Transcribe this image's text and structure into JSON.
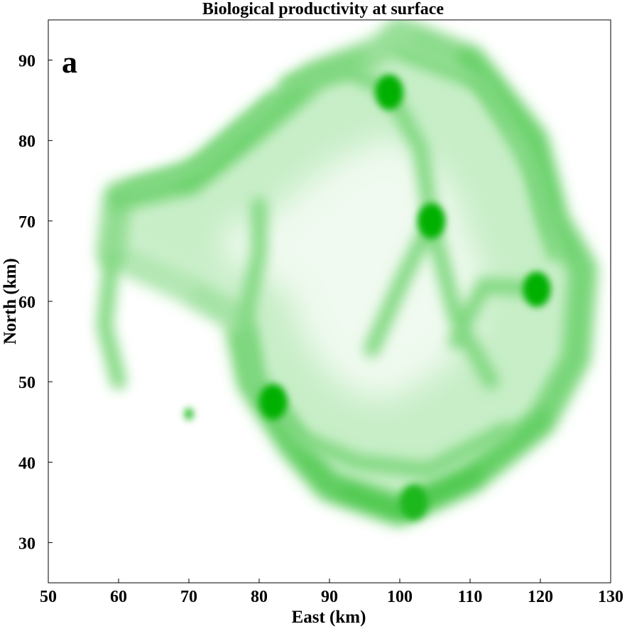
{
  "chart_data": {
    "type": "heatmap",
    "title": "Biological productivity at surface",
    "panel_label": "a",
    "xlabel": "East (km)",
    "ylabel": "North (km)",
    "xlim": [
      50,
      130
    ],
    "ylim": [
      25,
      95
    ],
    "x_ticks": [
      50,
      60,
      70,
      80,
      90,
      100,
      110,
      120,
      130
    ],
    "y_ticks": [
      30,
      40,
      50,
      60,
      70,
      80,
      90
    ],
    "grid": false,
    "colormap": {
      "low": "#ffffff",
      "high": "#00b000"
    },
    "colorbar": false,
    "features": {
      "outer_ring": [
        {
          "x": 100,
          "y": 93.5,
          "intensity": 0.35
        },
        {
          "x": 110,
          "y": 90,
          "intensity": 0.55
        },
        {
          "x": 119,
          "y": 80,
          "intensity": 0.6
        },
        {
          "x": 122,
          "y": 70,
          "intensity": 0.55
        },
        {
          "x": 126,
          "y": 64,
          "intensity": 0.55
        },
        {
          "x": 125,
          "y": 53,
          "intensity": 0.5
        },
        {
          "x": 120,
          "y": 45,
          "intensity": 0.55
        },
        {
          "x": 110,
          "y": 38,
          "intensity": 0.65
        },
        {
          "x": 100,
          "y": 34,
          "intensity": 0.7
        },
        {
          "x": 90,
          "y": 37,
          "intensity": 0.65
        },
        {
          "x": 85,
          "y": 42,
          "intensity": 0.6
        },
        {
          "x": 79,
          "y": 50,
          "intensity": 0.6
        },
        {
          "x": 77,
          "y": 58,
          "intensity": 0.45
        },
        {
          "x": 69,
          "y": 62,
          "intensity": 0.25
        },
        {
          "x": 59,
          "y": 66,
          "intensity": 0.35
        },
        {
          "x": 60,
          "y": 73,
          "intensity": 0.5
        },
        {
          "x": 70,
          "y": 75,
          "intensity": 0.55
        },
        {
          "x": 80,
          "y": 82,
          "intensity": 0.6
        },
        {
          "x": 88,
          "y": 88,
          "intensity": 0.5
        },
        {
          "x": 97,
          "y": 91,
          "intensity": 0.45
        }
      ],
      "eddy_cores": [
        {
          "x": 98.5,
          "y": 86,
          "intensity": 0.95
        },
        {
          "x": 104.5,
          "y": 70,
          "intensity": 0.9
        },
        {
          "x": 119.5,
          "y": 61.5,
          "intensity": 0.95
        },
        {
          "x": 82,
          "y": 47.5,
          "intensity": 0.9
        },
        {
          "x": 102,
          "y": 35,
          "intensity": 0.8
        },
        {
          "x": 70,
          "y": 46,
          "intensity": 0.7
        }
      ],
      "arms": [
        [
          {
            "x": 100,
            "y": 91
          },
          {
            "x": 112,
            "y": 87
          },
          {
            "x": 119,
            "y": 76
          },
          {
            "x": 122,
            "y": 66
          }
        ],
        [
          {
            "x": 98.5,
            "y": 86
          },
          {
            "x": 103,
            "y": 79
          },
          {
            "x": 104.5,
            "y": 70
          },
          {
            "x": 108,
            "y": 58
          },
          {
            "x": 113,
            "y": 50
          }
        ],
        [
          {
            "x": 104.5,
            "y": 70
          },
          {
            "x": 100,
            "y": 62
          },
          {
            "x": 96,
            "y": 54
          }
        ],
        [
          {
            "x": 119.5,
            "y": 61.5
          },
          {
            "x": 112,
            "y": 62
          },
          {
            "x": 108,
            "y": 55
          }
        ],
        [
          {
            "x": 82,
            "y": 47.5
          },
          {
            "x": 86,
            "y": 43
          },
          {
            "x": 94,
            "y": 40
          },
          {
            "x": 104,
            "y": 39
          },
          {
            "x": 115,
            "y": 44
          }
        ],
        [
          {
            "x": 79,
            "y": 50
          },
          {
            "x": 78,
            "y": 58
          },
          {
            "x": 80,
            "y": 66
          },
          {
            "x": 80,
            "y": 72
          }
        ],
        [
          {
            "x": 62,
            "y": 74
          },
          {
            "x": 72,
            "y": 77
          },
          {
            "x": 78,
            "y": 82
          },
          {
            "x": 82,
            "y": 85
          }
        ],
        [
          {
            "x": 84,
            "y": 87
          },
          {
            "x": 92,
            "y": 89
          },
          {
            "x": 99,
            "y": 86
          }
        ],
        [
          {
            "x": 59,
            "y": 65
          },
          {
            "x": 58,
            "y": 57
          },
          {
            "x": 60,
            "y": 50
          }
        ]
      ]
    }
  }
}
